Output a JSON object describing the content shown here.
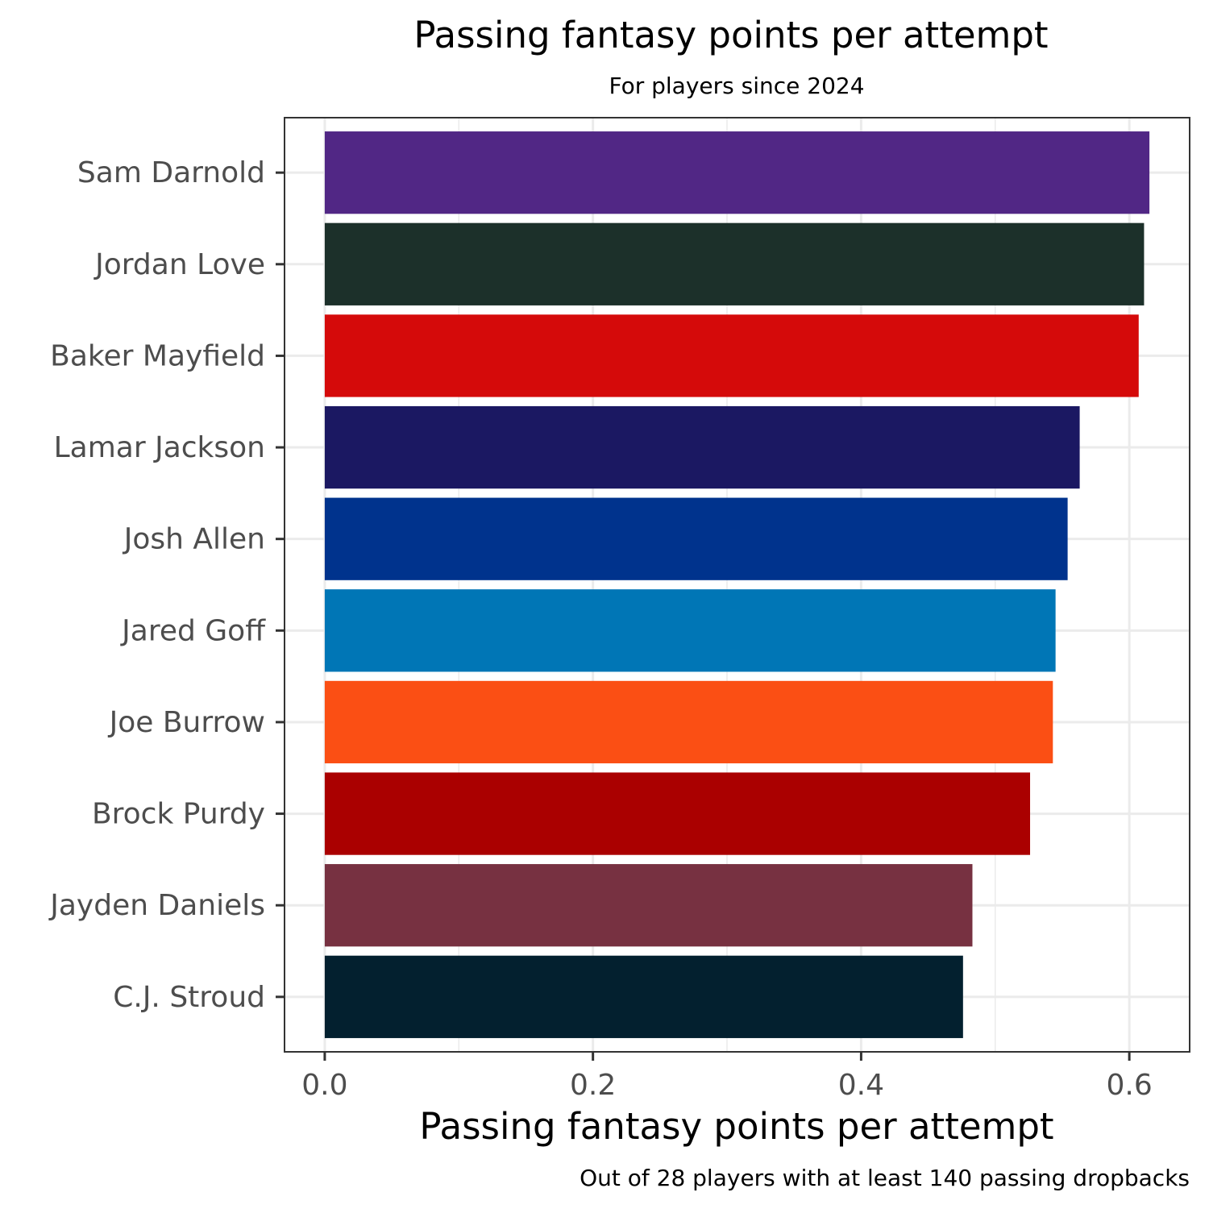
{
  "chart_data": {
    "type": "bar",
    "orientation": "horizontal",
    "title": "Passing fantasy points per attempt",
    "subtitle": "For players since 2024",
    "xlabel": "Passing fantasy points per attempt",
    "ylabel": "",
    "caption": "Out of 28 players with at least 140 passing dropbacks",
    "xlim": [
      -0.03,
      0.645
    ],
    "xticks": [
      0.0,
      0.2,
      0.4,
      0.6
    ],
    "xtick_labels": [
      "0.0",
      "0.2",
      "0.4",
      "0.6"
    ],
    "grid": true,
    "legend": "none",
    "categories": [
      "Sam Darnold",
      "Jordan Love",
      "Baker Mayfield",
      "Lamar Jackson",
      "Josh Allen",
      "Jared Goff",
      "Joe Burrow",
      "Brock Purdy",
      "Jayden Daniels",
      "C.J. Stroud"
    ],
    "values": [
      0.615,
      0.611,
      0.607,
      0.563,
      0.554,
      0.545,
      0.543,
      0.526,
      0.483,
      0.476
    ],
    "colors": [
      "#512785",
      "#1C302A",
      "#D50A0A",
      "#1B1862",
      "#00338D",
      "#0076B6",
      "#FB4F14",
      "#AA0000",
      "#773141",
      "#03202F"
    ]
  }
}
